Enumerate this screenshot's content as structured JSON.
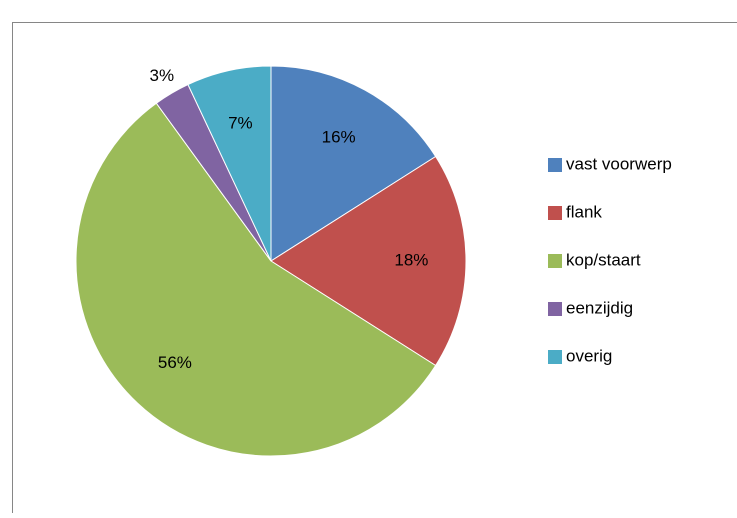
{
  "chart_data": {
    "type": "pie",
    "categories": [
      "vast voorwerp",
      "flank",
      "kop/staart",
      "eenzijdig",
      "overig"
    ],
    "values": [
      16,
      18,
      56,
      3,
      7
    ],
    "value_labels": [
      "16%",
      "18%",
      "56%",
      "3%",
      "7%"
    ],
    "colors": [
      "#4f81bd",
      "#c0504d",
      "#9bbb59",
      "#8064a2",
      "#4bacc6"
    ],
    "legend": "right"
  }
}
